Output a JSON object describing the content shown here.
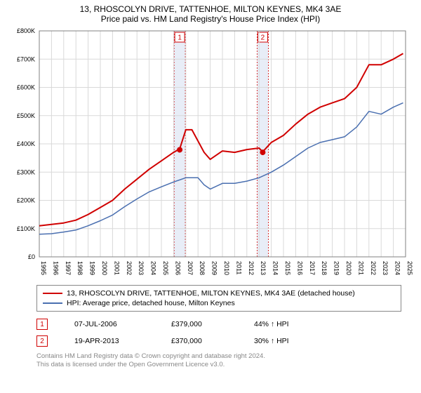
{
  "title": "13, RHOSCOLYN DRIVE, TATTENHOE, MILTON KEYNES, MK4 3AE",
  "subtitle": "Price paid vs. HM Land Registry's House Price Index (HPI)",
  "chart": {
    "type": "line",
    "background_color": "#ffffff",
    "plot_border_color": "#808080",
    "grid_color": "#d9d9d9",
    "sale_band_color": "#e8edf7",
    "sale_band_border": "#d00000",
    "x": {
      "years": [
        1995,
        1996,
        1997,
        1998,
        1999,
        2000,
        2001,
        2002,
        2003,
        2004,
        2005,
        2006,
        2007,
        2008,
        2009,
        2010,
        2011,
        2012,
        2013,
        2014,
        2015,
        2016,
        2017,
        2018,
        2019,
        2020,
        2021,
        2022,
        2023,
        2024,
        2025
      ],
      "label_fontsize": 9,
      "label_color": "#000000"
    },
    "y": {
      "min": 0,
      "max": 800000,
      "step": 100000,
      "labels": [
        "£0",
        "£100K",
        "£200K",
        "£300K",
        "£400K",
        "£500K",
        "£600K",
        "£700K",
        "£800K"
      ],
      "label_fontsize": 9,
      "label_color": "#000000"
    },
    "series": [
      {
        "name": "property",
        "label": "13, RHOSCOLYN DRIVE, TATTENHOE, MILTON KEYNES, MK4 3AE (detached house)",
        "color": "#d00000",
        "line_width": 2,
        "years": [
          1995,
          1996,
          1997,
          1998,
          1999,
          2000,
          2001,
          2002,
          2003,
          2004,
          2005,
          2006,
          2006.5,
          2007,
          2007.5,
          2008,
          2008.5,
          2009,
          2009.5,
          2010,
          2011,
          2012,
          2013,
          2013.3,
          2014,
          2015,
          2016,
          2017,
          2018,
          2019,
          2020,
          2021,
          2022,
          2023,
          2024,
          2024.8
        ],
        "values": [
          110000,
          115000,
          120000,
          130000,
          150000,
          175000,
          200000,
          240000,
          275000,
          310000,
          340000,
          370000,
          382000,
          450000,
          450000,
          410000,
          370000,
          345000,
          360000,
          375000,
          370000,
          380000,
          385000,
          372000,
          405000,
          430000,
          470000,
          505000,
          530000,
          545000,
          560000,
          600000,
          680000,
          680000,
          700000,
          720000
        ]
      },
      {
        "name": "hpi",
        "label": "HPI: Average price, detached house, Milton Keynes",
        "color": "#4a6fb0",
        "line_width": 1.5,
        "years": [
          1995,
          1996,
          1997,
          1998,
          1999,
          2000,
          2001,
          2002,
          2003,
          2004,
          2005,
          2006,
          2007,
          2008,
          2008.5,
          2009,
          2010,
          2011,
          2012,
          2013,
          2014,
          2015,
          2016,
          2017,
          2018,
          2019,
          2020,
          2021,
          2022,
          2023,
          2024,
          2024.8
        ],
        "values": [
          80000,
          82000,
          88000,
          95000,
          110000,
          128000,
          148000,
          178000,
          205000,
          230000,
          248000,
          265000,
          280000,
          280000,
          255000,
          240000,
          260000,
          260000,
          268000,
          280000,
          300000,
          325000,
          355000,
          385000,
          405000,
          415000,
          425000,
          460000,
          515000,
          505000,
          530000,
          545000
        ]
      }
    ],
    "sale_markers": [
      {
        "n": "1",
        "year": 2006.5,
        "value": 379000
      },
      {
        "n": "2",
        "year": 2013.3,
        "value": 370000
      }
    ]
  },
  "legend": {
    "items": [
      {
        "color": "#d00000",
        "label": "13, RHOSCOLYN DRIVE, TATTENHOE, MILTON KEYNES, MK4 3AE (detached house)"
      },
      {
        "color": "#4a6fb0",
        "label": "HPI: Average price, detached house, Milton Keynes"
      }
    ]
  },
  "sales": [
    {
      "n": "1",
      "date": "07-JUL-2006",
      "price": "£379,000",
      "diff": "44% ↑ HPI"
    },
    {
      "n": "2",
      "date": "19-APR-2013",
      "price": "£370,000",
      "diff": "30% ↑ HPI"
    }
  ],
  "footer": {
    "line1": "Contains HM Land Registry data © Crown copyright and database right 2024.",
    "line2": "This data is licensed under the Open Government Licence v3.0."
  }
}
